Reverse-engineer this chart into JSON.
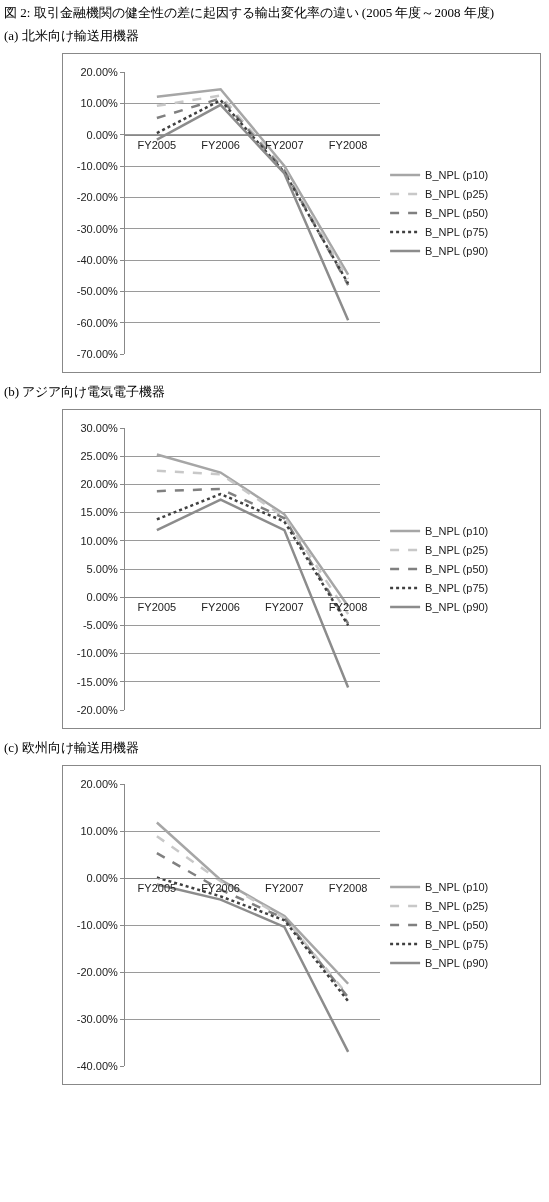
{
  "chart_data": [
    {
      "type": "line",
      "title": "図 2: 取引金融機関の健全性の差に起因する輸出変化率の違い (2005 年度～2008 年度)",
      "subtitle": "(a) 北米向け輸送用機器",
      "categories": [
        "FY2005",
        "FY2006",
        "FY2007",
        "FY2008"
      ],
      "ylim": [
        -70,
        20
      ],
      "yticks": [
        {
          "value": 20,
          "label": "20.00%"
        },
        {
          "value": 10,
          "label": "10.00%"
        },
        {
          "value": 0,
          "label": "0.00%"
        },
        {
          "value": -10,
          "label": "-10.00%"
        },
        {
          "value": -20,
          "label": "-20.00%"
        },
        {
          "value": -30,
          "label": "-30.00%"
        },
        {
          "value": -40,
          "label": "-40.00%"
        },
        {
          "value": -50,
          "label": "-50.00%"
        },
        {
          "value": -60,
          "label": "-60.00%"
        },
        {
          "value": -70,
          "label": "-70.00%"
        }
      ],
      "grid": "y",
      "legend": "right",
      "marker": "none",
      "series": [
        {
          "name": "B_NPL (p10)",
          "color": "#a6a6a6",
          "line_style": "solid",
          "values": [
            12.1,
            14.5,
            -10,
            -44.7
          ]
        },
        {
          "name": "B_NPL (p25)",
          "color": "#c8c8c8",
          "line_style": "dashed",
          "values": [
            9.2,
            12.5,
            -11,
            -46
          ]
        },
        {
          "name": "B_NPL (p50)",
          "color": "#808080",
          "line_style": "dashed",
          "values": [
            5.3,
            11.6,
            -11.5,
            -48
          ]
        },
        {
          "name": "B_NPL (p75)",
          "color": "#404040",
          "line_style": "dotted",
          "values": [
            0.5,
            11,
            -12,
            -47.5
          ]
        },
        {
          "name": "B_NPL (p90)",
          "color": "#8c8c8c",
          "line_style": "solid",
          "values": [
            -1.6,
            9.5,
            -12.4,
            -59.2
          ]
        }
      ]
    },
    {
      "type": "line",
      "subtitle": "(b) アジア向け電気電子機器",
      "categories": [
        "FY2005",
        "FY2006",
        "FY2007",
        "FY2008"
      ],
      "ylim": [
        -20,
        30
      ],
      "yticks": [
        {
          "value": 30,
          "label": "30.00%"
        },
        {
          "value": 25,
          "label": "25.00%"
        },
        {
          "value": 20,
          "label": "20.00%"
        },
        {
          "value": 15,
          "label": "15.00%"
        },
        {
          "value": 10,
          "label": "10.00%"
        },
        {
          "value": 5,
          "label": "5.00%"
        },
        {
          "value": 0,
          "label": "0.00%"
        },
        {
          "value": -5,
          "label": "-5.00%"
        },
        {
          "value": -10,
          "label": "-10.00%"
        },
        {
          "value": -15,
          "label": "-15.00%"
        },
        {
          "value": -20,
          "label": "-20.00%"
        }
      ],
      "grid": "y",
      "legend": "right",
      "marker": "none",
      "series": [
        {
          "name": "B_NPL (p10)",
          "color": "#a6a6a6",
          "line_style": "solid",
          "values": [
            25.3,
            22.1,
            14.7,
            -1.6
          ]
        },
        {
          "name": "B_NPL (p25)",
          "color": "#c8c8c8",
          "line_style": "dashed",
          "values": [
            22.4,
            21.8,
            14.2,
            -3
          ]
        },
        {
          "name": "B_NPL (p50)",
          "color": "#808080",
          "line_style": "dashed",
          "values": [
            18.8,
            19.2,
            14,
            -4.7
          ]
        },
        {
          "name": "B_NPL (p75)",
          "color": "#404040",
          "line_style": "dotted",
          "values": [
            13.8,
            18.3,
            13.4,
            -5
          ]
        },
        {
          "name": "B_NPL (p90)",
          "color": "#8c8c8c",
          "line_style": "solid",
          "values": [
            11.9,
            17.3,
            11.9,
            -16
          ]
        }
      ]
    },
    {
      "type": "line",
      "subtitle": "(c) 欧州向け輸送用機器",
      "categories": [
        "FY2005",
        "FY2006",
        "FY2007",
        "FY2008"
      ],
      "ylim": [
        -40,
        20
      ],
      "yticks": [
        {
          "value": 20,
          "label": "20.00%"
        },
        {
          "value": 10,
          "label": "10.00%"
        },
        {
          "value": 0,
          "label": "0.00%"
        },
        {
          "value": -10,
          "label": "-10.00%"
        },
        {
          "value": -20,
          "label": "-20.00%"
        },
        {
          "value": -30,
          "label": "-30.00%"
        },
        {
          "value": -40,
          "label": "-40.00%"
        }
      ],
      "grid": "y",
      "legend": "right",
      "marker": "none",
      "series": [
        {
          "name": "B_NPL (p10)",
          "color": "#a6a6a6",
          "line_style": "solid",
          "values": [
            11.8,
            -0.4,
            -8.1,
            -22.5
          ]
        },
        {
          "name": "B_NPL (p25)",
          "color": "#c8c8c8",
          "line_style": "dashed",
          "values": [
            8.9,
            -0.7,
            -8.5,
            -25
          ]
        },
        {
          "name": "B_NPL (p50)",
          "color": "#808080",
          "line_style": "dashed",
          "values": [
            5.3,
            -2.5,
            -8.6,
            -25.4
          ]
        },
        {
          "name": "B_NPL (p75)",
          "color": "#404040",
          "line_style": "dotted",
          "values": [
            0.1,
            -3.9,
            -9,
            -26.2
          ]
        },
        {
          "name": "B_NPL (p90)",
          "color": "#8c8c8c",
          "line_style": "solid",
          "values": [
            -1.4,
            -4.6,
            -10.4,
            -37
          ]
        }
      ]
    }
  ]
}
